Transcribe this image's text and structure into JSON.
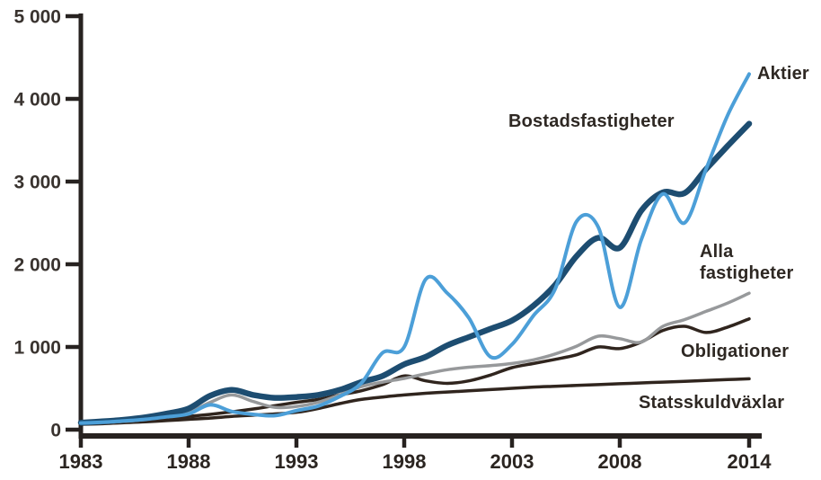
{
  "chart_data": {
    "type": "line",
    "title": "",
    "xlabel": "",
    "ylabel": "",
    "xlim": [
      1983,
      2014
    ],
    "ylim": [
      0,
      5000
    ],
    "grid": false,
    "legend_position": "inline-annotations-at-line-ends",
    "x": [
      1983,
      1984,
      1985,
      1986,
      1987,
      1988,
      1989,
      1990,
      1991,
      1992,
      1993,
      1994,
      1995,
      1996,
      1997,
      1998,
      1999,
      2000,
      2001,
      2002,
      2003,
      2004,
      2005,
      2006,
      2007,
      2008,
      2009,
      2010,
      2011,
      2012,
      2013,
      2014
    ],
    "series": [
      {
        "name": "Statsskuldväxlar",
        "color": "#30251e",
        "stroke_width": 3.5,
        "values": [
          65,
          72,
          85,
          95,
          110,
          125,
          140,
          160,
          175,
          190,
          210,
          255,
          315,
          365,
          395,
          420,
          440,
          455,
          470,
          485,
          500,
          515,
          525,
          535,
          545,
          555,
          565,
          575,
          585,
          595,
          605,
          615
        ]
      },
      {
        "name": "Obligationer",
        "color": "#30251e",
        "stroke_width": 3.5,
        "values": [
          70,
          80,
          95,
          115,
          135,
          160,
          185,
          215,
          250,
          290,
          330,
          365,
          420,
          470,
          545,
          650,
          590,
          560,
          590,
          660,
          750,
          800,
          850,
          905,
          1000,
          980,
          1060,
          1200,
          1250,
          1175,
          1240,
          1340
        ]
      },
      {
        "name": "Alla fastigheter",
        "color": "#97999b",
        "stroke_width": 3.5,
        "values": [
          75,
          85,
          100,
          125,
          160,
          210,
          330,
          420,
          340,
          270,
          280,
          330,
          420,
          520,
          575,
          620,
          675,
          725,
          755,
          775,
          800,
          845,
          915,
          1010,
          1130,
          1100,
          1060,
          1250,
          1330,
          1430,
          1530,
          1650
        ]
      },
      {
        "name": "Bostadsfastigheter",
        "color": "#1d4d71",
        "stroke_width": 6.5,
        "values": [
          85,
          100,
          120,
          150,
          195,
          255,
          410,
          480,
          420,
          385,
          395,
          420,
          480,
          575,
          650,
          790,
          880,
          1020,
          1120,
          1220,
          1320,
          1500,
          1750,
          2100,
          2320,
          2200,
          2650,
          2870,
          2860,
          3150,
          3430,
          3700
        ]
      },
      {
        "name": "Aktier",
        "color": "#4c9fd8",
        "stroke_width": 4,
        "values": [
          80,
          90,
          105,
          125,
          155,
          190,
          300,
          220,
          185,
          170,
          230,
          285,
          400,
          560,
          930,
          1000,
          1820,
          1650,
          1350,
          880,
          1030,
          1380,
          1700,
          2520,
          2450,
          1480,
          2300,
          2850,
          2500,
          3150,
          3800,
          4300
        ]
      }
    ],
    "x_axis": {
      "tick_years": [
        1983,
        1988,
        1993,
        1998,
        2003,
        2008,
        2014
      ],
      "tick_labels": [
        "1983",
        "1988",
        "1993",
        "1998",
        "2003",
        "2008",
        "2014"
      ]
    },
    "y_axis": {
      "tick_values": [
        0,
        1000,
        2000,
        3000,
        4000,
        5000
      ],
      "tick_labels": [
        "0",
        "1 000",
        "2 000",
        "3 000",
        "4 000",
        "5 000"
      ]
    }
  },
  "annotations": {
    "aktier": "Aktier",
    "bostadsfastigheter": "Bostadsfastigheter",
    "alla_fastigheter_line1": "Alla",
    "alla_fastigheter_line2": "fastigheter",
    "obligationer": "Obligationer",
    "statsskuldvaxlar": "Statsskuldväxlar"
  },
  "colors": {
    "aktier_line": "#4c9fd8",
    "bostadsfastigheter_line": "#1d4d71",
    "alla_fastigheter_line": "#97999b",
    "dark_line": "#30251e",
    "axis": "#272220",
    "x_tick_label": "#2b2521",
    "y_tick_label": "#39332f",
    "series_label_text": "#2e2823",
    "background": "#ffffff"
  }
}
